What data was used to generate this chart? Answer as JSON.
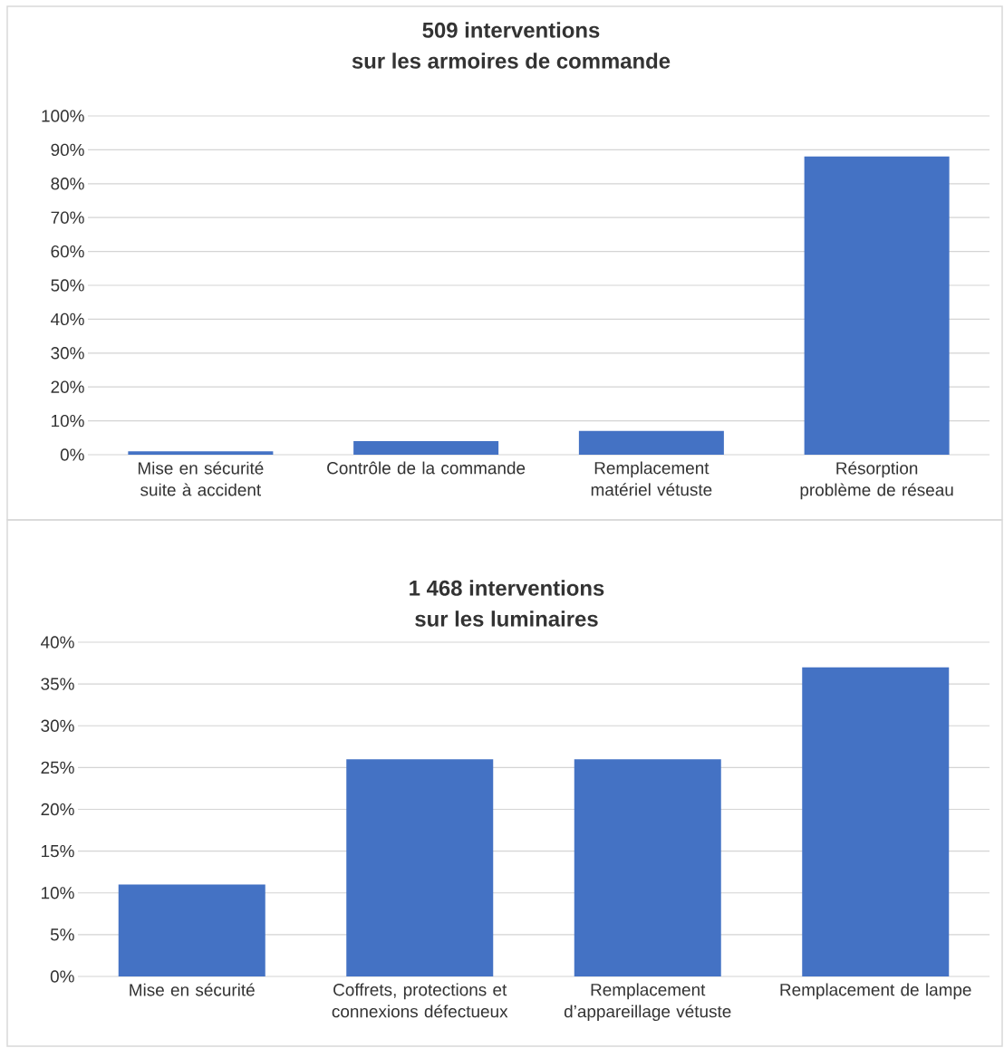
{
  "chart_data": [
    {
      "type": "bar",
      "title": "509 interventions",
      "subtitle": "sur les armoires de commande",
      "categories": [
        "Mise en sécurité suite à accident",
        "Contrôle de la commande",
        "Remplacement matériel vétuste",
        "Résorption problème de réseau"
      ],
      "values": [
        1,
        4,
        7,
        88
      ],
      "color": "#4472c4",
      "ylim": [
        0,
        100
      ],
      "yticks": [
        {
          "value": 0,
          "label": "0%"
        },
        {
          "value": 10,
          "label": "10%"
        },
        {
          "value": 20,
          "label": "20%"
        },
        {
          "value": 30,
          "label": "30%"
        },
        {
          "value": 40,
          "label": "40%"
        },
        {
          "value": 50,
          "label": "50%"
        },
        {
          "value": 60,
          "label": "60%"
        },
        {
          "value": 70,
          "label": "70%"
        },
        {
          "value": 80,
          "label": "80%"
        },
        {
          "value": 90,
          "label": "90%"
        },
        {
          "value": 100,
          "label": "100%"
        }
      ],
      "grid": "y"
    },
    {
      "type": "bar",
      "title": "1 468 interventions",
      "subtitle": "sur les luminaires",
      "categories": [
        "Mise en sécurité",
        "Coffrets, protections et connexions défectueux",
        "Remplacement d’appareillage vétuste",
        "Remplacement de lampe"
      ],
      "values": [
        11,
        26,
        26,
        37
      ],
      "color": "#4472c4",
      "ylim": [
        0,
        40
      ],
      "yticks": [
        {
          "value": 0,
          "label": "0%"
        },
        {
          "value": 5,
          "label": "5%"
        },
        {
          "value": 10,
          "label": "10%"
        },
        {
          "value": 15,
          "label": "15%"
        },
        {
          "value": 20,
          "label": "20%"
        },
        {
          "value": 25,
          "label": "25%"
        },
        {
          "value": 30,
          "label": "30%"
        },
        {
          "value": 35,
          "label": "35%"
        },
        {
          "value": 40,
          "label": "40%"
        }
      ],
      "grid": "y"
    }
  ]
}
